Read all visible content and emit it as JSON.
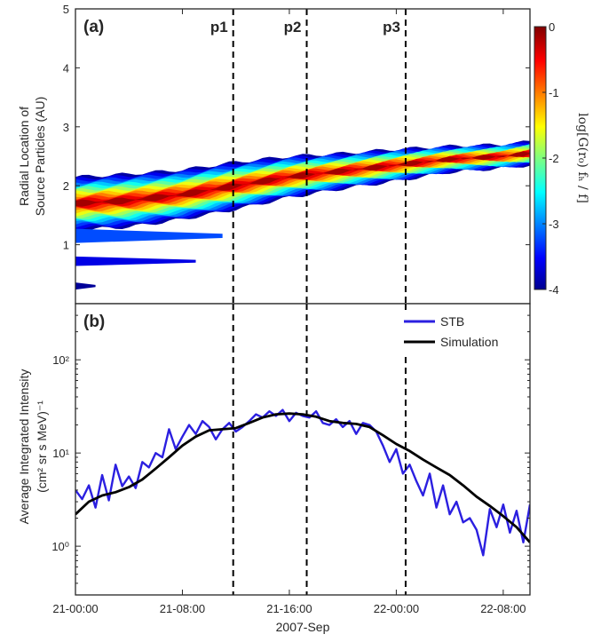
{
  "chart_data": [
    {
      "panel": "(a)",
      "type": "heatmap",
      "ylabel_line1": "Radial Location of",
      "ylabel_line2": "Source Particles (AU)",
      "ylim": [
        0,
        5
      ],
      "yticks": [
        "1",
        "2",
        "3",
        "4",
        "5"
      ],
      "ytick_values": [
        1,
        2,
        3,
        4,
        5
      ],
      "colorbar": {
        "label": "log[G(r₀) fₕ / f]",
        "range": [
          -4,
          0
        ],
        "ticks": [
          "0",
          "-1",
          "-2",
          "-3",
          "-4"
        ],
        "tick_values": [
          0,
          -1,
          -2,
          -3,
          -4
        ],
        "colormap": "jet"
      },
      "markers": [
        {
          "label": "p1",
          "x_hours": 11.8
        },
        {
          "label": "p2",
          "x_hours": 17.3
        },
        {
          "label": "p3",
          "x_hours": 24.7
        }
      ],
      "band": {
        "x_hours": [
          0,
          4,
          8,
          12,
          16,
          20,
          24,
          28,
          32,
          34
        ],
        "center_AU": [
          1.7,
          1.75,
          1.85,
          2.0,
          2.15,
          2.25,
          2.35,
          2.45,
          2.5,
          2.55
        ],
        "half_width_AU": [
          0.45,
          0.45,
          0.42,
          0.4,
          0.35,
          0.3,
          0.27,
          0.22,
          0.2,
          0.2
        ]
      }
    },
    {
      "panel": "(b)",
      "type": "line",
      "ylabel_line1": "Average Integrated Intensity",
      "ylabel_line2": "(cm² sr s MeV)⁻¹",
      "yscale": "log",
      "ylim": [
        0.3,
        400
      ],
      "yticks": [
        "10⁰",
        "10¹",
        "10²"
      ],
      "ytick_values": [
        1,
        10,
        100
      ],
      "xlabel": "2007-Sep",
      "xlim_hours": [
        0,
        34
      ],
      "xticks": [
        "21-00:00",
        "21-08:00",
        "21-16:00",
        "22-00:00",
        "22-08:00"
      ],
      "xtick_hours": [
        0,
        8,
        16,
        24,
        32
      ],
      "legend_position": "top-right",
      "series": [
        {
          "name": "STB",
          "color": "#2b1fe0",
          "x": [
            0,
            0.5,
            1,
            1.5,
            2,
            2.5,
            3,
            3.5,
            4,
            4.5,
            5,
            5.5,
            6,
            6.5,
            7,
            7.5,
            8,
            8.5,
            9,
            9.5,
            10,
            10.5,
            11,
            11.5,
            12,
            12.5,
            13,
            13.5,
            14,
            14.5,
            15,
            15.5,
            16,
            16.5,
            17,
            17.5,
            18,
            18.5,
            19,
            19.5,
            20,
            20.5,
            21,
            21.5,
            22,
            22.5,
            23,
            23.5,
            24,
            24.5,
            25,
            25.5,
            26,
            26.5,
            27,
            27.5,
            28,
            28.5,
            29,
            29.5,
            30,
            30.5,
            31,
            31.5,
            32,
            32.5,
            33,
            33.5,
            34
          ],
          "y": [
            4,
            3.2,
            4.5,
            2.6,
            5.8,
            3.1,
            7.5,
            4.4,
            5.6,
            4.2,
            8,
            7,
            10,
            9,
            18,
            11,
            15,
            20,
            16,
            22,
            19,
            14,
            18,
            21,
            17,
            19,
            22,
            26,
            24,
            28,
            25,
            29,
            22,
            27,
            25,
            24,
            28,
            21,
            20,
            23,
            19,
            22,
            16,
            21,
            20,
            17,
            12,
            8,
            11,
            6,
            7.5,
            5,
            3.5,
            6,
            2.6,
            4.5,
            2.2,
            3,
            1.8,
            2,
            1.5,
            0.8,
            2.5,
            1.6,
            2.8,
            1.4,
            2.4,
            1.1,
            2.8
          ]
        },
        {
          "name": "Simulation",
          "color": "#000000",
          "x": [
            0,
            1,
            2,
            3,
            4,
            5,
            6,
            7,
            8,
            9,
            10,
            11,
            12,
            13,
            14,
            15,
            16,
            17,
            18,
            19,
            20,
            21,
            22,
            23,
            24,
            25,
            26,
            27,
            28,
            29,
            30,
            31,
            32,
            33,
            34
          ],
          "y": [
            2.2,
            3.0,
            3.5,
            3.8,
            4.3,
            5.2,
            6.8,
            9.0,
            12,
            15,
            17.5,
            18,
            18.5,
            21,
            24,
            26,
            26.5,
            26,
            24.5,
            22,
            21,
            20.5,
            19,
            15.5,
            12.5,
            10.5,
            8.5,
            7,
            5.8,
            4.5,
            3.4,
            2.7,
            2.1,
            1.6,
            1.1
          ]
        }
      ]
    }
  ]
}
